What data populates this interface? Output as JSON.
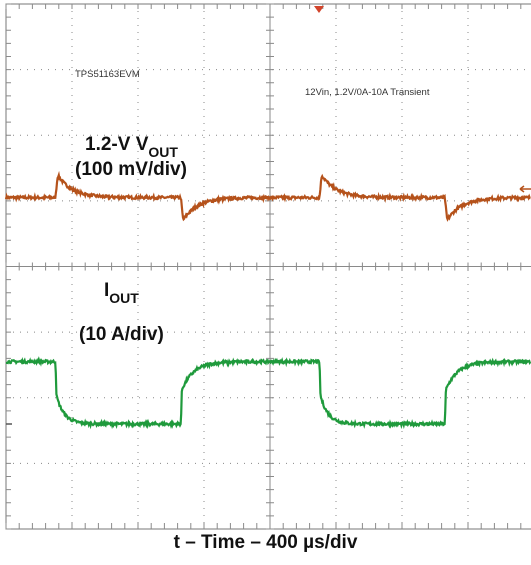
{
  "chart_data": {
    "type": "line",
    "title": "",
    "device_label": "TPS51163EVM",
    "condition_label": "12Vin, 1.2V/0A-10A Transient",
    "xlabel": "t – Time – 400 µs/div",
    "grid": true,
    "divisions": {
      "x": 8,
      "y": 8
    },
    "channels": [
      {
        "name_main": "1.2-V V",
        "name_sub": "OUT",
        "scale": "(100 mV/div)",
        "color": "#b5521b",
        "baseline_div": 5.05,
        "events": [
          {
            "t_div": 0.75,
            "direction": "up",
            "peak_div": 0.4,
            "tau_div": 0.22
          },
          {
            "t_div": 2.65,
            "direction": "down",
            "peak_div": 0.4,
            "tau_div": 0.22
          },
          {
            "t_div": 4.75,
            "direction": "up",
            "peak_div": 0.4,
            "tau_div": 0.22
          },
          {
            "t_div": 6.65,
            "direction": "down",
            "peak_div": 0.4,
            "tau_div": 0.22
          }
        ]
      },
      {
        "name_main": "I",
        "name_sub": "OUT",
        "scale": "(10 A/div)",
        "color": "#1f9a3c",
        "high_div": 2.55,
        "low_div": 1.6,
        "steps": [
          {
            "t_div": 0.75,
            "to": "low"
          },
          {
            "t_div": 2.65,
            "to": "high"
          },
          {
            "t_div": 4.75,
            "to": "low"
          },
          {
            "t_div": 6.65,
            "to": "high"
          }
        ]
      }
    ]
  }
}
